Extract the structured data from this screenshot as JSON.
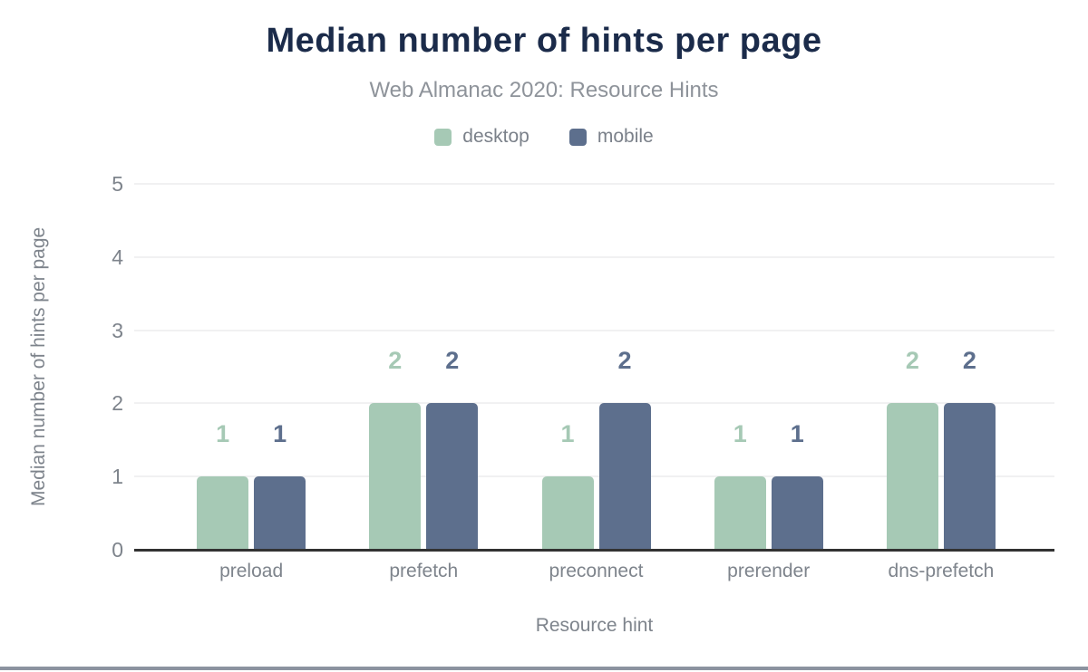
{
  "header": {
    "title": "Median number of hints per page",
    "subtitle": "Web Almanac 2020: Resource Hints"
  },
  "chart_data": {
    "type": "bar",
    "title": "Median number of hints per page",
    "subtitle": "Web Almanac 2020: Resource Hints",
    "xlabel": "Resource hint",
    "ylabel": "Median number of hints per page",
    "ylim": [
      0,
      5
    ],
    "yticks": [
      0,
      1,
      2,
      3,
      4,
      5
    ],
    "grid": "horizontal",
    "legend_position": "top-center",
    "categories": [
      "preload",
      "prefetch",
      "preconnect",
      "prerender",
      "dns-prefetch"
    ],
    "series": [
      {
        "name": "desktop",
        "color": "#a6c9b5",
        "values": [
          1,
          2,
          1,
          1,
          2
        ]
      },
      {
        "name": "mobile",
        "color": "#5d6f8d",
        "values": [
          1,
          2,
          2,
          1,
          2
        ]
      }
    ]
  },
  "colors": {
    "title": "#1b2b4a",
    "subtitle": "#8e939a",
    "axis_text": "#7e848c",
    "gridline": "#f1f1f2",
    "axis_line": "#323232",
    "bottom_bar": "#8c93a0"
  }
}
